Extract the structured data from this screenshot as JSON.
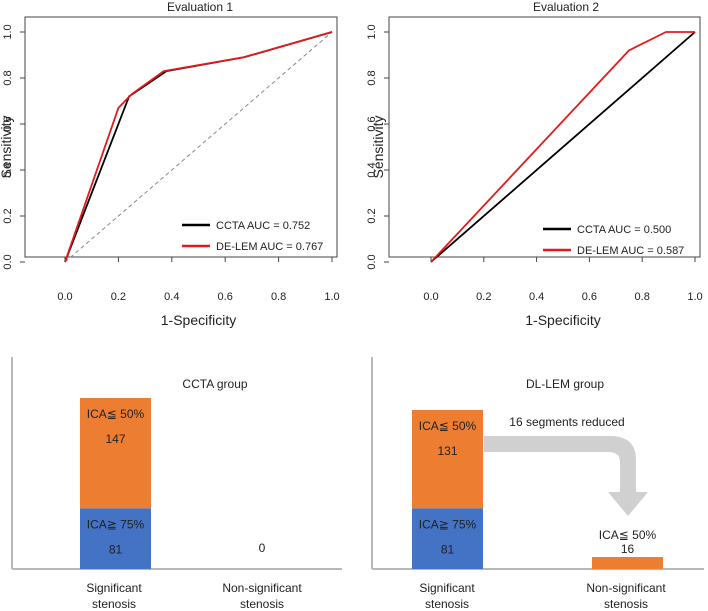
{
  "chart_data": [
    {
      "type": "line",
      "title": "Evaluation 1",
      "xlabel": "1-Specificity",
      "ylabel": "Sensitivity",
      "xlim": [
        0,
        1
      ],
      "ylim": [
        0,
        1
      ],
      "xticks": [
        "0.0",
        "0.2",
        "0.4",
        "0.6",
        "0.8",
        "1.0"
      ],
      "yticks": [
        "0.0",
        "0.2",
        "0.4",
        "0.6",
        "0.8",
        "1.0"
      ],
      "diagonal_reference": true,
      "legend_position": "bottom-right",
      "series": [
        {
          "name": "CCTA",
          "auc_label": "CCTA  AUC = 0.752",
          "color": "#000000",
          "x": [
            0,
            0.24,
            0.38,
            0.67,
            1.0
          ],
          "y": [
            0,
            0.72,
            0.83,
            0.89,
            1.0
          ]
        },
        {
          "name": "DE-LEM",
          "auc_label": "DE-LEM AUC = 0.767",
          "color": "#e31a1c",
          "x": [
            0,
            0.2,
            0.25,
            0.37,
            0.67,
            1.0
          ],
          "y": [
            0,
            0.67,
            0.73,
            0.83,
            0.89,
            1.0
          ]
        }
      ]
    },
    {
      "type": "line",
      "title": "Evaluation 2",
      "xlabel": "1-Specificity",
      "ylabel": "Sensitivity",
      "xlim": [
        0,
        1
      ],
      "ylim": [
        0,
        1
      ],
      "xticks": [
        "0.0",
        "0.2",
        "0.4",
        "0.6",
        "0.8",
        "1.0"
      ],
      "yticks": [
        "0.0",
        "0.2",
        "0.4",
        "0.6",
        "0.8",
        "1.0"
      ],
      "diagonal_reference": false,
      "legend_position": "bottom-right",
      "series": [
        {
          "name": "CCTA",
          "auc_label": "CCTA  AUC = 0.500",
          "color": "#000000",
          "x": [
            0,
            1.0
          ],
          "y": [
            0,
            1.0
          ]
        },
        {
          "name": "DE-LEM",
          "auc_label": "DE-LEM AUC = 0.587",
          "color": "#e31a1c",
          "x": [
            0,
            0.75,
            0.89,
            1.0
          ],
          "y": [
            0,
            0.92,
            1.0,
            1.0
          ]
        }
      ]
    },
    {
      "type": "bar",
      "title": "CCTA group",
      "categories": [
        "Significant stenosis",
        "Non-significant stenosis"
      ],
      "category_lines": [
        [
          "Significant",
          "stenosis"
        ],
        [
          "Non-significant",
          "stenosis"
        ]
      ],
      "series": [
        {
          "name": "ICA≧ 75%",
          "color": "#4472c4",
          "values": [
            81,
            0
          ]
        },
        {
          "name": "ICA≦ 50%",
          "color": "#ed7d31",
          "values": [
            147,
            0
          ]
        }
      ],
      "bar_labels": [
        {
          "category": 0,
          "series": 1,
          "name": "ICA≦ 50%",
          "value": "147"
        },
        {
          "category": 0,
          "series": 0,
          "name": "ICA≧ 75%",
          "value": "81"
        }
      ],
      "zero_label": {
        "category": 1,
        "value": "0"
      },
      "ylim": [
        0,
        260
      ]
    },
    {
      "type": "bar",
      "title": "DL-LEM group",
      "categories": [
        "Significant stenosis",
        "Non-significant stenosis"
      ],
      "category_lines": [
        [
          "Significant",
          "stenosis"
        ],
        [
          "Non-significant",
          "stenosis"
        ]
      ],
      "series": [
        {
          "name": "ICA≧ 75%",
          "color": "#4472c4",
          "values": [
            81,
            0
          ]
        },
        {
          "name": "ICA≦ 50%",
          "color": "#ed7d31",
          "values": [
            131,
            16
          ]
        }
      ],
      "bar_labels": [
        {
          "category": 0,
          "series": 1,
          "name": "ICA≦ 50%",
          "value": "131"
        },
        {
          "category": 0,
          "series": 0,
          "name": "ICA≧ 75%",
          "value": "81"
        },
        {
          "category": 1,
          "series": 1,
          "name": "ICA≦ 50%",
          "value": "16"
        }
      ],
      "annotation": {
        "text": "16 segments reduced",
        "arrow_color": "#d0d0d0"
      },
      "ylim": [
        0,
        260
      ]
    }
  ]
}
